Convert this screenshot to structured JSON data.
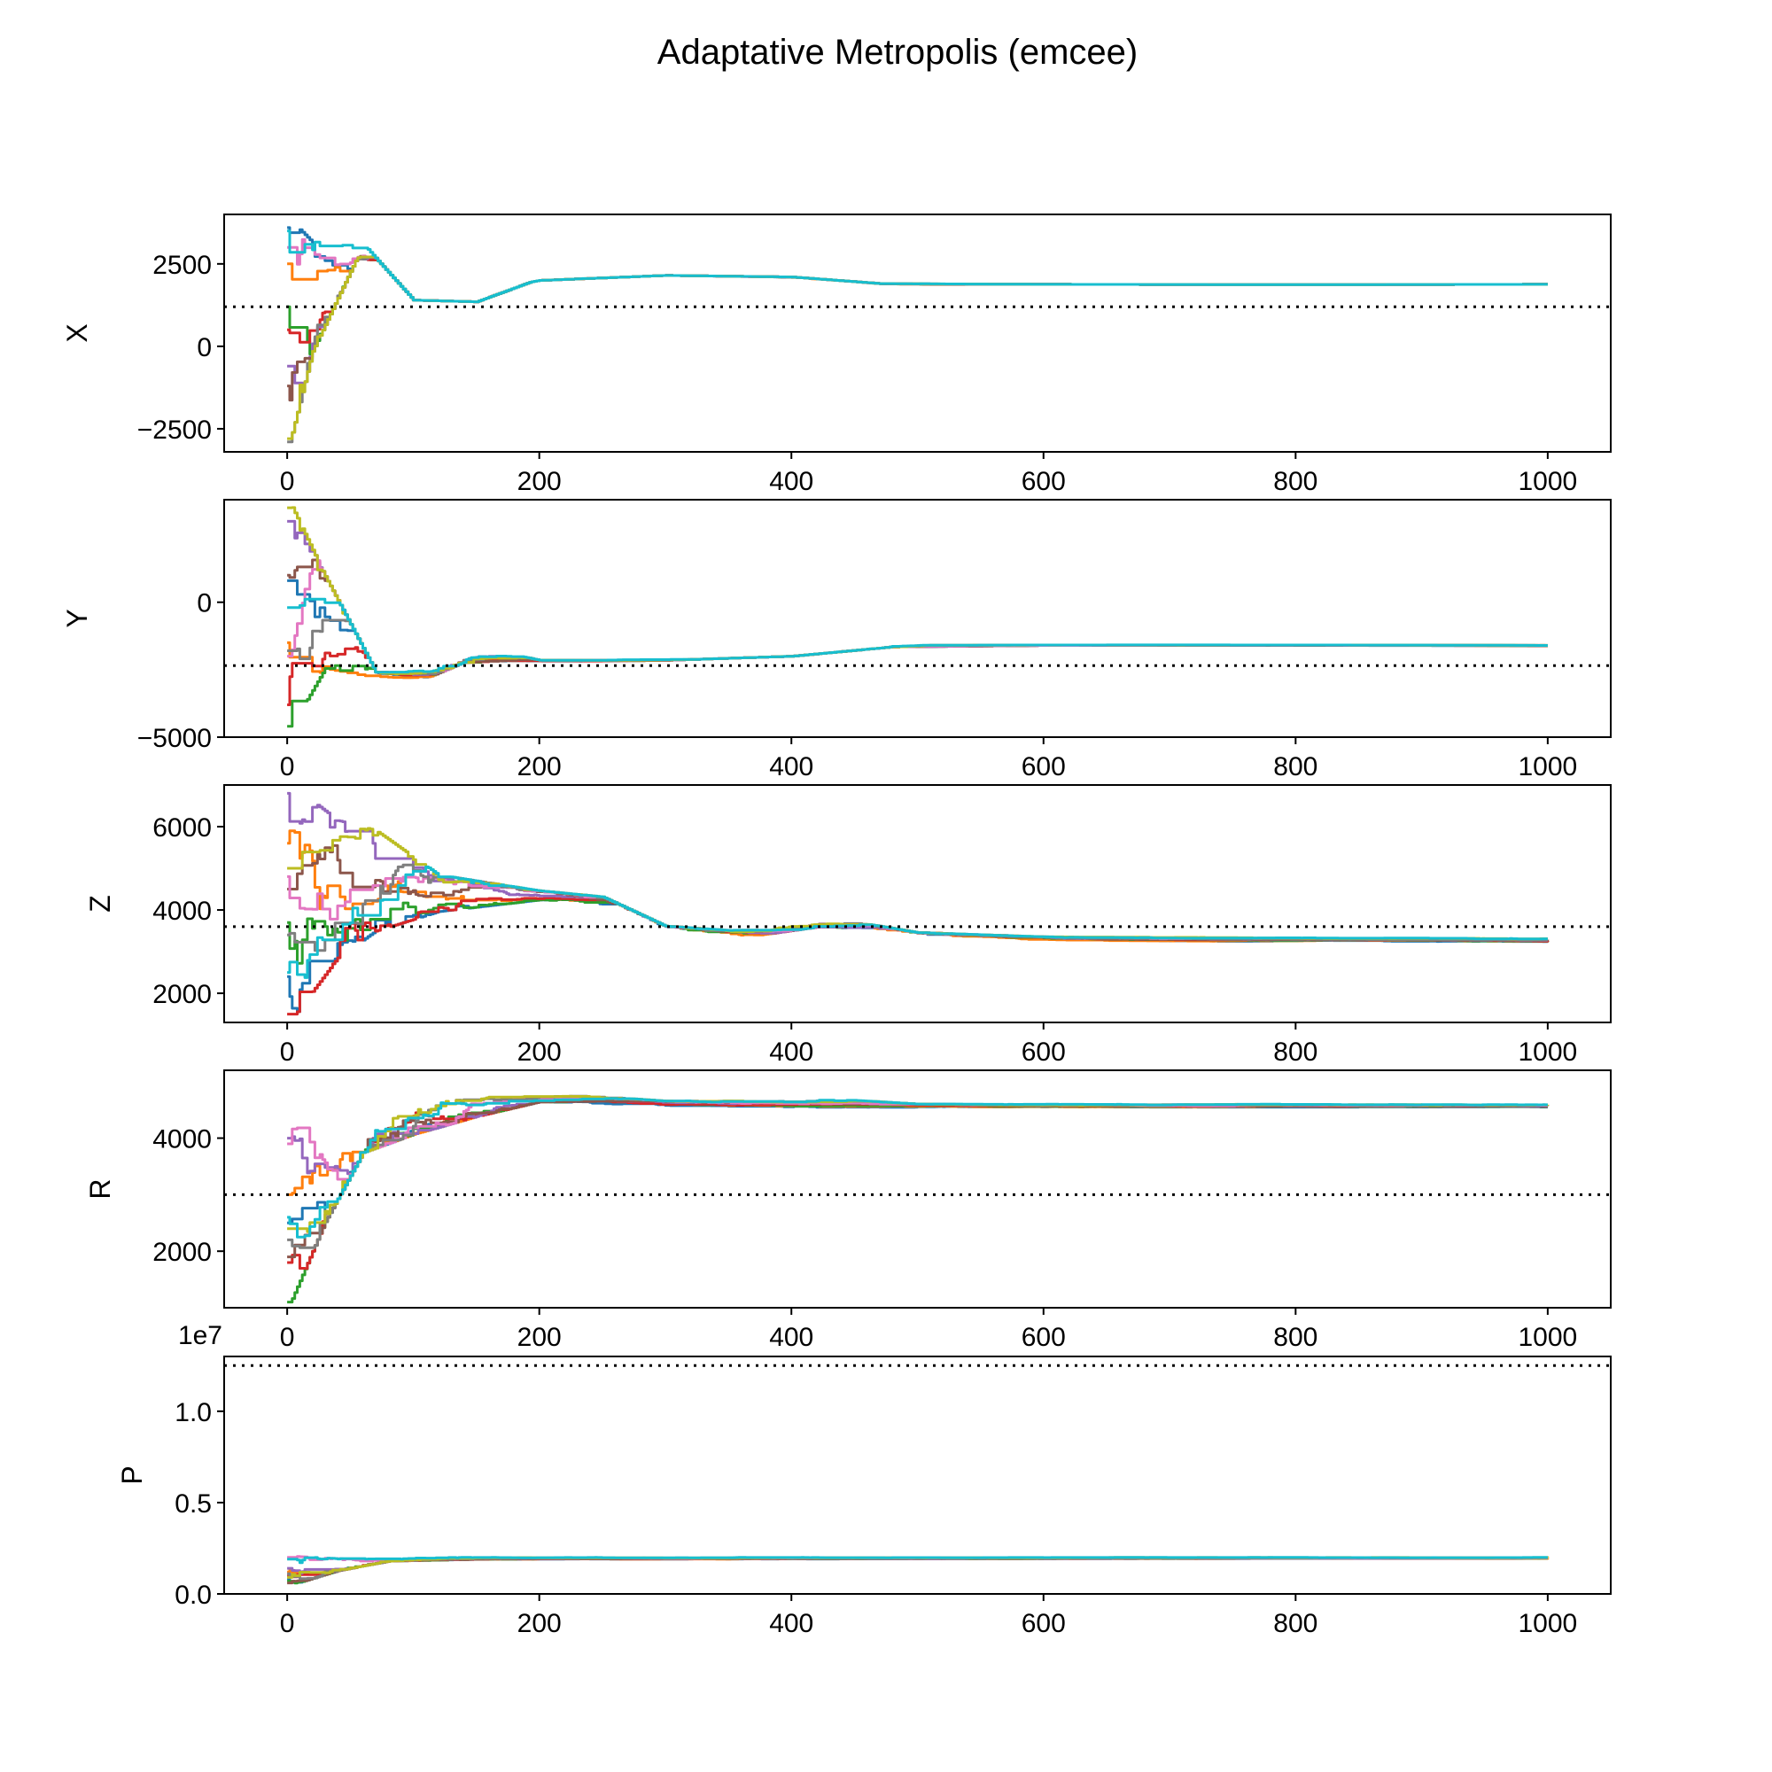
{
  "figure": {
    "title": "Adaptative Metropolis (emcee)"
  },
  "chart_data": {
    "type": "line",
    "title": "Adaptative Metropolis (emcee)",
    "x_ticks": [
      0,
      200,
      400,
      600,
      800,
      1000
    ],
    "xlim": [
      -50,
      1050
    ],
    "n_walkers": 10,
    "n_steps": 1000,
    "colors": [
      "#1f77b4",
      "#ff7f0e",
      "#2ca02c",
      "#d62728",
      "#9467bd",
      "#8c564b",
      "#e377c2",
      "#7f7f7f",
      "#bcbd22",
      "#17becf"
    ],
    "panels": [
      {
        "ylabel": "X",
        "ylim": [
          -3200,
          4000
        ],
        "y_ticks": [
          -2500,
          0,
          2500
        ],
        "y_tick_labels": [
          "−2500",
          "0",
          "2500"
        ],
        "offset_text": "",
        "truth": 1200,
        "anchors": [
          [
            0,
            -2900,
            3600
          ],
          [
            20,
            0,
            3000
          ],
          [
            55,
            2700,
            3300
          ],
          [
            100,
            1950,
            1400
          ],
          [
            150,
            1650,
            1350
          ],
          [
            200,
            2000,
            2050
          ],
          [
            300,
            2150,
            2150
          ],
          [
            400,
            2050,
            2100
          ],
          [
            470,
            1850,
            1900
          ],
          [
            600,
            1920,
            1880
          ],
          [
            800,
            1900,
            1870
          ],
          [
            1000,
            1900,
            1880
          ]
        ],
        "walkers": [
          {
            "start": 3600,
            "jitter": 300
          },
          {
            "start": 2500,
            "jitter": 350
          },
          {
            "start": 1200,
            "jitter": 320
          },
          {
            "start": 500,
            "jitter": 300
          },
          {
            "start": -600,
            "jitter": 350
          },
          {
            "start": -1200,
            "jitter": 300
          },
          {
            "start": 3000,
            "jitter": 330
          },
          {
            "start": -2900,
            "jitter": 300
          },
          {
            "start": -2800,
            "jitter": 350
          },
          {
            "start": 3500,
            "jitter": 350
          }
        ]
      },
      {
        "ylabel": "Y",
        "ylim": [
          -5000,
          3800
        ],
        "y_ticks": [
          -5000,
          0
        ],
        "y_tick_labels": [
          "−5000",
          "0"
        ],
        "offset_text": "",
        "truth": -2350,
        "anchors": [
          [
            0,
            -4500,
            3500
          ],
          [
            30,
            -2300,
            800
          ],
          [
            70,
            -2800,
            -2600
          ],
          [
            110,
            -2800,
            -2500
          ],
          [
            140,
            -2200,
            -1600
          ],
          [
            200,
            -2200,
            -2150
          ],
          [
            300,
            -2150,
            -2100
          ],
          [
            400,
            -2000,
            -1950
          ],
          [
            480,
            -1650,
            -1550
          ],
          [
            600,
            -1600,
            -1580
          ],
          [
            800,
            -1600,
            -1580
          ],
          [
            1000,
            -1620,
            -1600
          ]
        ],
        "walkers": [
          {
            "start": 800,
            "jitter": 250
          },
          {
            "start": -1500,
            "jitter": 250
          },
          {
            "start": -4600,
            "jitter": 250
          },
          {
            "start": -3800,
            "jitter": 280
          },
          {
            "start": 3000,
            "jitter": 300
          },
          {
            "start": 1000,
            "jitter": 250
          },
          {
            "start": -2000,
            "jitter": 260
          },
          {
            "start": -1800,
            "jitter": 250
          },
          {
            "start": 3500,
            "jitter": 300
          },
          {
            "start": -200,
            "jitter": 260
          }
        ]
      },
      {
        "ylabel": "Z",
        "ylim": [
          1300,
          7000
        ],
        "y_ticks": [
          2000,
          4000,
          6000
        ],
        "y_tick_labels": [
          "2000",
          "4000",
          "6000"
        ],
        "offset_text": "",
        "truth": 3600,
        "anchors": [
          [
            0,
            1500,
            6800
          ],
          [
            40,
            3000,
            6000
          ],
          [
            70,
            3600,
            5800
          ],
          [
            120,
            4000,
            4800
          ],
          [
            200,
            4250,
            4450
          ],
          [
            250,
            4000,
            4300
          ],
          [
            300,
            3350,
            3600
          ],
          [
            350,
            3300,
            3500
          ],
          [
            420,
            3600,
            3850
          ],
          [
            500,
            3300,
            3450
          ],
          [
            600,
            3250,
            3350
          ],
          [
            800,
            3250,
            3330
          ],
          [
            1000,
            3230,
            3320
          ]
        ],
        "walkers": [
          {
            "start": 2400,
            "jitter": 300
          },
          {
            "start": 5600,
            "jitter": 350
          },
          {
            "start": 3700,
            "jitter": 320
          },
          {
            "start": 1500,
            "jitter": 300
          },
          {
            "start": 6800,
            "jitter": 400
          },
          {
            "start": 4500,
            "jitter": 320
          },
          {
            "start": 4800,
            "jitter": 300
          },
          {
            "start": 3400,
            "jitter": 330
          },
          {
            "start": 5000,
            "jitter": 320
          },
          {
            "start": 2500,
            "jitter": 350
          }
        ]
      },
      {
        "ylabel": "R",
        "ylim": [
          1000,
          5200
        ],
        "y_ticks": [
          2000,
          4000
        ],
        "y_tick_labels": [
          "2000",
          "4000"
        ],
        "offset_text": "",
        "truth": 3000,
        "anchors": [
          [
            0,
            1100,
            4000
          ],
          [
            30,
            2600,
            4200
          ],
          [
            60,
            3800,
            4950
          ],
          [
            100,
            4100,
            4800
          ],
          [
            150,
            4400,
            4800
          ],
          [
            200,
            4650,
            4800
          ],
          [
            300,
            4550,
            4650
          ],
          [
            420,
            4550,
            4700
          ],
          [
            500,
            4550,
            4600
          ],
          [
            700,
            4550,
            4600
          ],
          [
            1000,
            4550,
            4600
          ]
        ],
        "walkers": [
          {
            "start": 2500,
            "jitter": 250
          },
          {
            "start": 3000,
            "jitter": 300
          },
          {
            "start": 1100,
            "jitter": 280
          },
          {
            "start": 1800,
            "jitter": 250
          },
          {
            "start": 4000,
            "jitter": 300
          },
          {
            "start": 1900,
            "jitter": 250
          },
          {
            "start": 3900,
            "jitter": 280
          },
          {
            "start": 2200,
            "jitter": 250
          },
          {
            "start": 2400,
            "jitter": 300
          },
          {
            "start": 2600,
            "jitter": 280
          }
        ]
      },
      {
        "ylabel": "P",
        "ylim": [
          0,
          1.3
        ],
        "y_ticks": [
          0.0,
          0.5,
          1.0
        ],
        "y_tick_labels": [
          "0.0",
          "0.5",
          "1.0"
        ],
        "offset_text": "1e7",
        "truth": 1.25,
        "anchors": [
          [
            0,
            0.05,
            0.2
          ],
          [
            40,
            0.13,
            0.19
          ],
          [
            80,
            0.18,
            0.2
          ],
          [
            150,
            0.19,
            0.2
          ],
          [
            1000,
            0.195,
            0.2
          ]
        ],
        "walkers": [
          {
            "start": 0.08,
            "jitter": 0.01
          },
          {
            "start": 0.12,
            "jitter": 0.01
          },
          {
            "start": 0.07,
            "jitter": 0.01
          },
          {
            "start": 0.1,
            "jitter": 0.01
          },
          {
            "start": 0.14,
            "jitter": 0.01
          },
          {
            "start": 0.06,
            "jitter": 0.01
          },
          {
            "start": 0.2,
            "jitter": 0.01
          },
          {
            "start": 0.11,
            "jitter": 0.01
          },
          {
            "start": 0.09,
            "jitter": 0.01
          },
          {
            "start": 0.19,
            "jitter": 0.01
          }
        ]
      }
    ]
  }
}
